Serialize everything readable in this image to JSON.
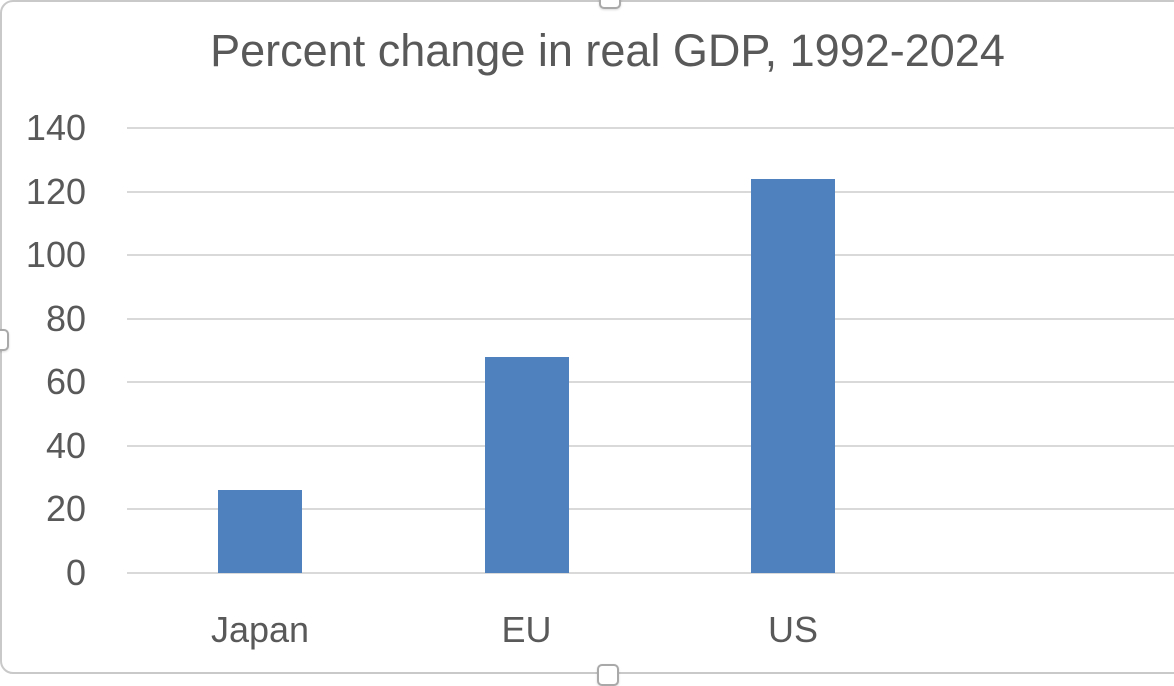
{
  "chart_data": {
    "type": "bar",
    "title": "Percent change in real GDP, 1992-2024",
    "categories": [
      "Japan",
      "EU",
      "US"
    ],
    "values": [
      26,
      68,
      124
    ],
    "xlabel": "",
    "ylabel": "",
    "ylim": [
      0,
      140
    ],
    "yticks": [
      0,
      20,
      40,
      60,
      80,
      100,
      120,
      140
    ],
    "grid": true,
    "legend_position": "none",
    "colors": {
      "bar": "#4E81BD",
      "gridline": "#D9D9D9",
      "text": "#595959",
      "frame_border": "#C9C9C9",
      "background": "#FFFFFF"
    }
  },
  "selection": {
    "state": "chart-object-selected",
    "handles": [
      "top-center",
      "left-middle",
      "bottom-center"
    ]
  }
}
